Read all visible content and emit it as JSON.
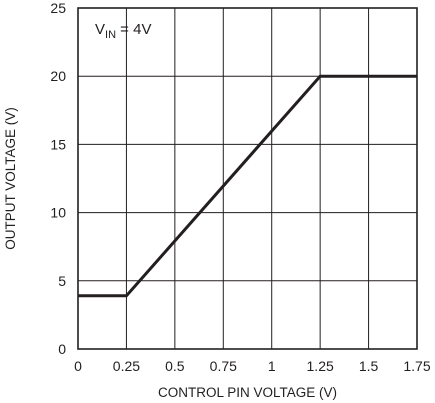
{
  "chart_data": {
    "type": "line",
    "xlabel": "CONTROL PIN VOLTAGE (V)",
    "ylabel": "OUTPUT VOLTAGE (V)",
    "xlim": [
      0,
      1.75
    ],
    "ylim": [
      0,
      25
    ],
    "x_ticks": [
      "0",
      "0.25",
      "0.5",
      "0.75",
      "1",
      "1.25",
      "1.5",
      "1.75"
    ],
    "y_ticks": [
      "0",
      "5",
      "10",
      "15",
      "20",
      "25"
    ],
    "grid": true,
    "annotation": {
      "main": "V",
      "sub": "IN",
      "rest": " = 4V"
    },
    "series": [
      {
        "x": [
          0,
          0.25,
          1.25,
          1.75
        ],
        "y": [
          3.9,
          3.9,
          20,
          20
        ]
      }
    ]
  }
}
